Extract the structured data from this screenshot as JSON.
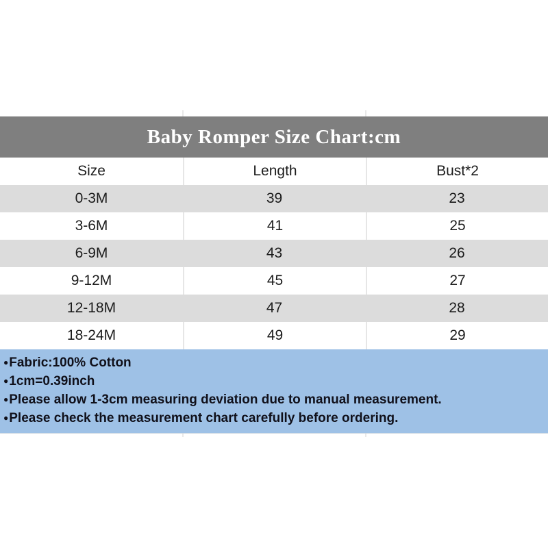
{
  "title": "Baby Romper Size Chart:cm",
  "colors": {
    "title_band_bg": "#7f7f7f",
    "title_text": "#ffffff",
    "row_alt_bg": "#dcdcdc",
    "row_white_bg": "#ffffff",
    "divider": "#e6e6e6",
    "notes_bg": "#9ec1e6",
    "notes_text": "#10101a"
  },
  "chart_data": {
    "type": "table",
    "title": "Baby Romper Size Chart:cm",
    "unit": "cm",
    "columns": [
      "Size",
      "Length",
      "Bust*2"
    ],
    "rows": [
      [
        "0-3M",
        "39",
        "23"
      ],
      [
        "3-6M",
        "41",
        "25"
      ],
      [
        "6-9M",
        "43",
        "26"
      ],
      [
        "9-12M",
        "45",
        "27"
      ],
      [
        "12-18M",
        "47",
        "28"
      ],
      [
        "18-24M",
        "49",
        "29"
      ]
    ],
    "layout": {
      "row_striping": "alternating gray/white starting gray",
      "alignment": "center"
    }
  },
  "notes": {
    "bullet": "●",
    "items": [
      "Fabric:100% Cotton",
      "1cm=0.39inch",
      "Please allow 1-3cm measuring deviation due to manual measurement.",
      "Please check the measurement chart carefully before ordering."
    ]
  }
}
